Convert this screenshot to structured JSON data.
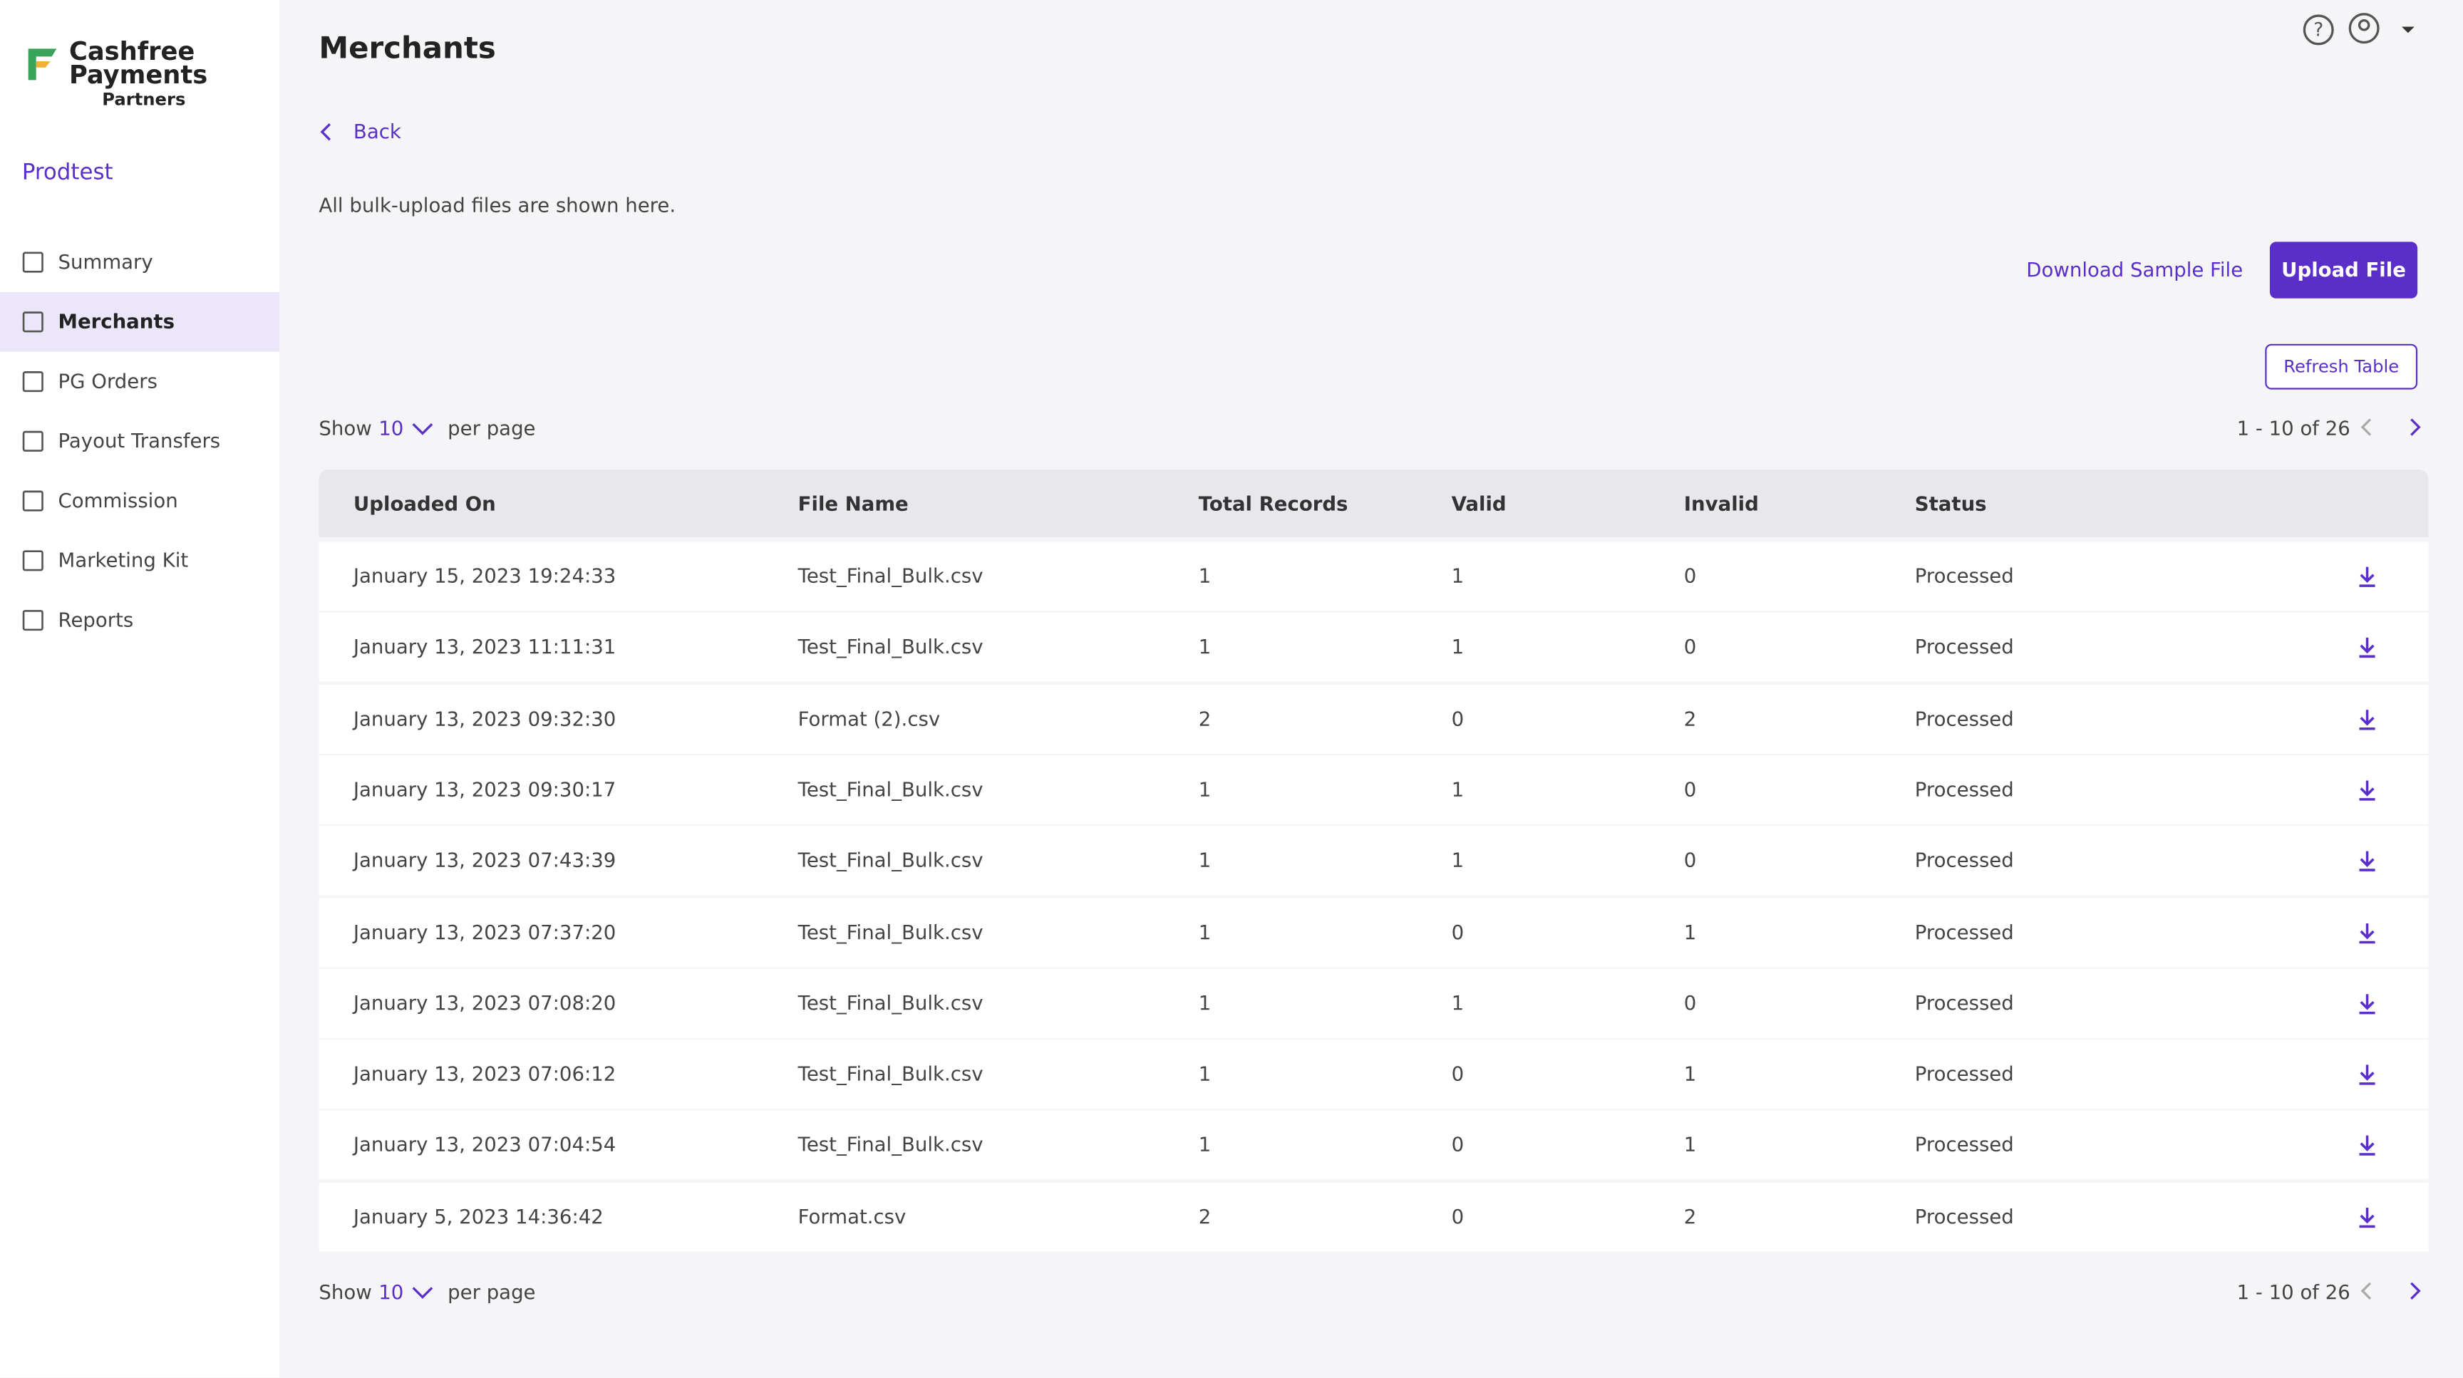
{
  "brand": {
    "name": "Cashfree Payments",
    "sub": "Partners"
  },
  "org": "Prodtest",
  "nav": [
    "Summary",
    "Merchants",
    "PG Orders",
    "Payout Transfers",
    "Commission",
    "Marketing Kit",
    "Reports"
  ],
  "active_nav": 1,
  "header": {
    "title": "Merchants",
    "back": "Back",
    "description": "All bulk-upload files are shown here."
  },
  "buttons": {
    "download_sample": "Download Sample File",
    "upload": "Upload File",
    "refresh": "Refresh Table"
  },
  "pagination": {
    "show": "Show",
    "per_page_value": 10,
    "per_page": "per page",
    "range": "1 - 10 of 26"
  },
  "table": {
    "columns": [
      "Uploaded On",
      "File Name",
      "Total Records",
      "Valid",
      "Invalid",
      "Status"
    ],
    "rows": [
      [
        "January 15, 2023 19:24:33",
        "Test_Final_Bulk.csv",
        1,
        1,
        0,
        "Processed"
      ],
      [
        "January 13, 2023 11:11:31",
        "Test_Final_Bulk.csv",
        1,
        1,
        0,
        "Processed"
      ],
      [
        "January 13, 2023 09:32:30",
        "Format (2).csv",
        2,
        0,
        2,
        "Processed"
      ],
      [
        "January 13, 2023 09:30:17",
        "Test_Final_Bulk.csv",
        1,
        1,
        0,
        "Processed"
      ],
      [
        "January 13, 2023 07:43:39",
        "Test_Final_Bulk.csv",
        1,
        1,
        0,
        "Processed"
      ],
      [
        "January 13, 2023 07:37:20",
        "Test_Final_Bulk.csv",
        1,
        0,
        1,
        "Processed"
      ],
      [
        "January 13, 2023 07:08:20",
        "Test_Final_Bulk.csv",
        1,
        1,
        0,
        "Processed"
      ],
      [
        "January 13, 2023 07:06:12",
        "Test_Final_Bulk.csv",
        1,
        0,
        1,
        "Processed"
      ],
      [
        "January 13, 2023 07:04:54",
        "Test_Final_Bulk.csv",
        1,
        0,
        1,
        "Processed"
      ],
      [
        "January 5, 2023 14:36:42",
        "Format.csv",
        2,
        0,
        2,
        "Processed"
      ]
    ]
  }
}
